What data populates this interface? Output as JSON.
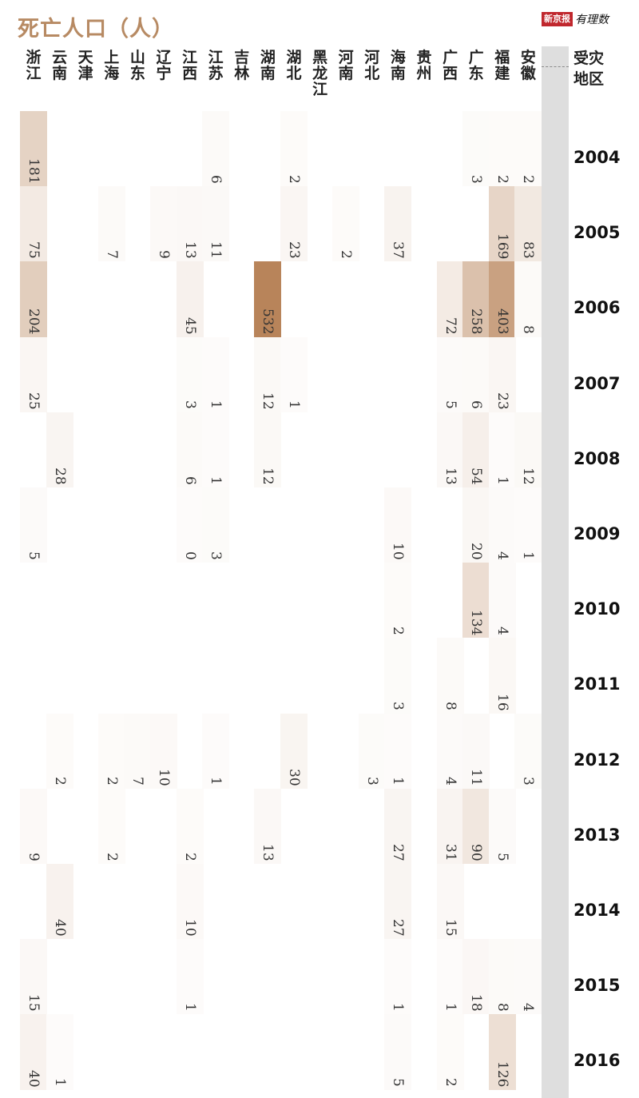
{
  "title": "死亡人口（人）",
  "logo": {
    "brand": "新京报",
    "sub": "有理数"
  },
  "axis_header": [
    "受灾",
    "地区"
  ],
  "chart_data": {
    "type": "heatmap",
    "title": "死亡人口（人）",
    "provinces": [
      "浙江",
      "云南",
      "天津",
      "上海",
      "山东",
      "辽宁",
      "江西",
      "江苏",
      "吉林",
      "湖南",
      "湖北",
      "黑龙江",
      "河南",
      "河北",
      "海南",
      "贵州",
      "广西",
      "广东",
      "福建",
      "安徽"
    ],
    "years": [
      "2004",
      "2005",
      "2006",
      "2007",
      "2008",
      "2009",
      "2010",
      "2011",
      "2012",
      "2013",
      "2014",
      "2015",
      "2016"
    ],
    "color_scale": {
      "min": 0,
      "max": 532,
      "low": "#ffffff",
      "high": "#b8845a"
    },
    "cells": [
      {
        "province": "浙江",
        "year": "2004",
        "value": 181
      },
      {
        "province": "江苏",
        "year": "2004",
        "value": 6
      },
      {
        "province": "湖北",
        "year": "2004",
        "value": 2
      },
      {
        "province": "广东",
        "year": "2004",
        "value": 3
      },
      {
        "province": "福建",
        "year": "2004",
        "value": 2
      },
      {
        "province": "安徽",
        "year": "2004",
        "value": 2
      },
      {
        "province": "浙江",
        "year": "2005",
        "value": 75
      },
      {
        "province": "上海",
        "year": "2005",
        "value": 7
      },
      {
        "province": "辽宁",
        "year": "2005",
        "value": 9
      },
      {
        "province": "江西",
        "year": "2005",
        "value": 13
      },
      {
        "province": "江苏",
        "year": "2005",
        "value": 11
      },
      {
        "province": "湖北",
        "year": "2005",
        "value": 23
      },
      {
        "province": "河南",
        "year": "2005",
        "value": 2
      },
      {
        "province": "海南",
        "year": "2005",
        "value": 37
      },
      {
        "province": "福建",
        "year": "2005",
        "value": 169
      },
      {
        "province": "安徽",
        "year": "2005",
        "value": 83
      },
      {
        "province": "浙江",
        "year": "2006",
        "value": 204
      },
      {
        "province": "江西",
        "year": "2006",
        "value": 45
      },
      {
        "province": "湖南",
        "year": "2006",
        "value": 532
      },
      {
        "province": "广西",
        "year": "2006",
        "value": 72
      },
      {
        "province": "广东",
        "year": "2006",
        "value": 258
      },
      {
        "province": "福建",
        "year": "2006",
        "value": 403
      },
      {
        "province": "安徽",
        "year": "2006",
        "value": 8
      },
      {
        "province": "浙江",
        "year": "2007",
        "value": 25
      },
      {
        "province": "江西",
        "year": "2007",
        "value": 3
      },
      {
        "province": "江苏",
        "year": "2007",
        "value": 1
      },
      {
        "province": "湖南",
        "year": "2007",
        "value": 12
      },
      {
        "province": "湖北",
        "year": "2007",
        "value": 1
      },
      {
        "province": "广西",
        "year": "2007",
        "value": 5
      },
      {
        "province": "广东",
        "year": "2007",
        "value": 6
      },
      {
        "province": "福建",
        "year": "2007",
        "value": 23
      },
      {
        "province": "云南",
        "year": "2008",
        "value": 28
      },
      {
        "province": "江西",
        "year": "2008",
        "value": 6
      },
      {
        "province": "江苏",
        "year": "2008",
        "value": 1
      },
      {
        "province": "湖南",
        "year": "2008",
        "value": 12
      },
      {
        "province": "广西",
        "year": "2008",
        "value": 13
      },
      {
        "province": "广东",
        "year": "2008",
        "value": 54
      },
      {
        "province": "福建",
        "year": "2008",
        "value": 1
      },
      {
        "province": "安徽",
        "year": "2008",
        "value": 12
      },
      {
        "province": "浙江",
        "year": "2009",
        "value": 5
      },
      {
        "province": "江西",
        "year": "2009",
        "value": 0
      },
      {
        "province": "江苏",
        "year": "2009",
        "value": 3
      },
      {
        "province": "海南",
        "year": "2009",
        "value": 10
      },
      {
        "province": "广东",
        "year": "2009",
        "value": 20
      },
      {
        "province": "福建",
        "year": "2009",
        "value": 4
      },
      {
        "province": "安徽",
        "year": "2009",
        "value": 1
      },
      {
        "province": "海南",
        "year": "2010",
        "value": 2
      },
      {
        "province": "广东",
        "year": "2010",
        "value": 134
      },
      {
        "province": "福建",
        "year": "2010",
        "value": 4
      },
      {
        "province": "海南",
        "year": "2011",
        "value": 3
      },
      {
        "province": "广西",
        "year": "2011",
        "value": 8
      },
      {
        "province": "福建",
        "year": "2011",
        "value": 16
      },
      {
        "province": "云南",
        "year": "2012",
        "value": 2
      },
      {
        "province": "上海",
        "year": "2012",
        "value": 2
      },
      {
        "province": "山东",
        "year": "2012",
        "value": 7
      },
      {
        "province": "辽宁",
        "year": "2012",
        "value": 10
      },
      {
        "province": "江苏",
        "year": "2012",
        "value": 1
      },
      {
        "province": "湖北",
        "year": "2012",
        "value": 30
      },
      {
        "province": "河北",
        "year": "2012",
        "value": 3
      },
      {
        "province": "海南",
        "year": "2012",
        "value": 1
      },
      {
        "province": "广西",
        "year": "2012",
        "value": 4
      },
      {
        "province": "广东",
        "year": "2012",
        "value": 11
      },
      {
        "province": "安徽",
        "year": "2012",
        "value": 3
      },
      {
        "province": "浙江",
        "year": "2013",
        "value": 9
      },
      {
        "province": "上海",
        "year": "2013",
        "value": 2
      },
      {
        "province": "江西",
        "year": "2013",
        "value": 2
      },
      {
        "province": "湖南",
        "year": "2013",
        "value": 13
      },
      {
        "province": "海南",
        "year": "2013",
        "value": 27
      },
      {
        "province": "广西",
        "year": "2013",
        "value": 31
      },
      {
        "province": "广东",
        "year": "2013",
        "value": 90
      },
      {
        "province": "福建",
        "year": "2013",
        "value": 5
      },
      {
        "province": "云南",
        "year": "2014",
        "value": 40
      },
      {
        "province": "江西",
        "year": "2014",
        "value": 10
      },
      {
        "province": "海南",
        "year": "2014",
        "value": 27
      },
      {
        "province": "广西",
        "year": "2014",
        "value": 15
      },
      {
        "province": "浙江",
        "year": "2015",
        "value": 15
      },
      {
        "province": "江西",
        "year": "2015",
        "value": 1
      },
      {
        "province": "海南",
        "year": "2015",
        "value": 1
      },
      {
        "province": "广西",
        "year": "2015",
        "value": 1
      },
      {
        "province": "广东",
        "year": "2015",
        "value": 18
      },
      {
        "province": "福建",
        "year": "2015",
        "value": 8
      },
      {
        "province": "安徽",
        "year": "2015",
        "value": 4
      },
      {
        "province": "浙江",
        "year": "2016",
        "value": 40
      },
      {
        "province": "云南",
        "year": "2016",
        "value": 1
      },
      {
        "province": "海南",
        "year": "2016",
        "value": 5
      },
      {
        "province": "广西",
        "year": "2016",
        "value": 2
      },
      {
        "province": "福建",
        "year": "2016",
        "value": 126
      }
    ]
  }
}
